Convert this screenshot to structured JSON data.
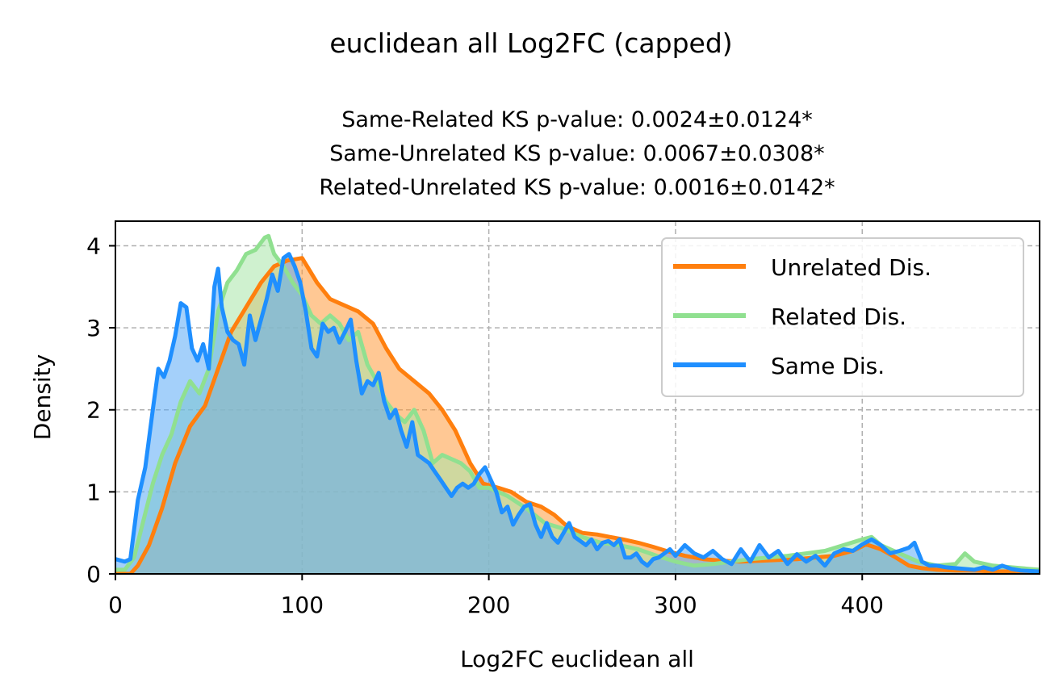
{
  "chart_data": {
    "type": "area",
    "suptitle": "euclidean all Log2FC (capped)",
    "title_lines": [
      "Same-Related KS p-value: 0.0024±0.0124*",
      "Same-Unrelated KS p-value: 0.0067±0.0308*",
      "Related-Unrelated KS p-value: 0.0016±0.0142*"
    ],
    "xlabel": "Log2FC euclidean all",
    "ylabel": "Density",
    "xlim": [
      0,
      495
    ],
    "ylim": [
      0,
      4.3
    ],
    "xticks": [
      0,
      100,
      200,
      300,
      400
    ],
    "yticks": [
      0,
      1,
      2,
      3,
      4
    ],
    "grid": true,
    "legend_position": "upper right",
    "series": [
      {
        "name": "Unrelated Dis.",
        "color": "#ff7f0e",
        "fill": "#ff9a3c",
        "x": [
          0,
          8,
          12,
          18,
          25,
          32,
          40,
          48,
          55,
          62,
          70,
          78,
          85,
          92,
          100,
          108,
          115,
          122,
          130,
          138,
          145,
          152,
          160,
          168,
          175,
          182,
          190,
          197,
          205,
          212,
          220,
          228,
          235,
          242,
          250,
          258,
          265,
          272,
          280,
          288,
          295,
          305,
          315,
          325,
          335,
          345,
          355,
          365,
          375,
          385,
          395,
          402,
          410,
          418,
          425,
          432,
          440,
          450,
          460,
          470,
          480,
          495
        ],
        "y": [
          0.0,
          0.0,
          0.1,
          0.35,
          0.8,
          1.35,
          1.8,
          2.05,
          2.5,
          2.95,
          3.25,
          3.55,
          3.75,
          3.82,
          3.85,
          3.55,
          3.35,
          3.28,
          3.2,
          3.05,
          2.75,
          2.5,
          2.35,
          2.2,
          2.0,
          1.75,
          1.35,
          1.1,
          1.05,
          1.0,
          0.88,
          0.82,
          0.72,
          0.58,
          0.5,
          0.48,
          0.45,
          0.42,
          0.38,
          0.33,
          0.28,
          0.22,
          0.18,
          0.16,
          0.15,
          0.16,
          0.17,
          0.18,
          0.2,
          0.22,
          0.28,
          0.36,
          0.3,
          0.2,
          0.1,
          0.07,
          0.05,
          0.04,
          0.04,
          0.03,
          0.03,
          0.02
        ]
      },
      {
        "name": "Related Dis.",
        "color": "#90e090",
        "fill": "#a8e6a8",
        "x": [
          0,
          5,
          10,
          15,
          20,
          25,
          30,
          35,
          40,
          45,
          50,
          55,
          60,
          65,
          70,
          75,
          80,
          82,
          85,
          90,
          95,
          100,
          105,
          110,
          115,
          120,
          125,
          130,
          135,
          140,
          145,
          150,
          155,
          160,
          165,
          170,
          175,
          180,
          185,
          190,
          195,
          200,
          210,
          220,
          230,
          240,
          250,
          260,
          270,
          280,
          290,
          300,
          310,
          320,
          330,
          340,
          350,
          360,
          370,
          380,
          390,
          400,
          405,
          410,
          420,
          430,
          440,
          450,
          455,
          460,
          470,
          480,
          495
        ],
        "y": [
          0.05,
          0.05,
          0.2,
          0.65,
          1.1,
          1.45,
          1.7,
          2.1,
          2.35,
          2.2,
          2.5,
          3.2,
          3.55,
          3.7,
          3.9,
          3.95,
          4.1,
          4.12,
          3.9,
          3.75,
          3.55,
          3.4,
          3.15,
          3.05,
          3.15,
          3.05,
          2.85,
          2.95,
          2.55,
          2.35,
          2.1,
          1.95,
          1.85,
          2.0,
          1.75,
          1.35,
          1.45,
          1.4,
          1.35,
          1.25,
          1.05,
          1.05,
          0.95,
          0.8,
          0.62,
          0.55,
          0.45,
          0.38,
          0.35,
          0.3,
          0.22,
          0.15,
          0.1,
          0.12,
          0.15,
          0.18,
          0.2,
          0.22,
          0.25,
          0.28,
          0.35,
          0.42,
          0.45,
          0.35,
          0.25,
          0.15,
          0.1,
          0.12,
          0.25,
          0.15,
          0.1,
          0.08,
          0.05
        ]
      },
      {
        "name": "Same Dis.",
        "color": "#1f8fff",
        "fill": "#5aaaf5",
        "x": [
          0,
          5,
          8,
          12,
          16,
          20,
          23,
          26,
          29,
          32,
          35,
          38,
          41,
          44,
          47,
          50,
          53,
          55,
          57,
          60,
          63,
          66,
          69,
          72,
          75,
          78,
          81,
          84,
          87,
          90,
          93,
          96,
          99,
          102,
          105,
          108,
          111,
          114,
          117,
          120,
          123,
          126,
          129,
          132,
          135,
          138,
          141,
          144,
          147,
          150,
          153,
          156,
          159,
          162,
          165,
          168,
          171,
          174,
          177,
          180,
          183,
          186,
          189,
          192,
          195,
          198,
          201,
          204,
          207,
          210,
          213,
          216,
          219,
          222,
          225,
          228,
          231,
          234,
          237,
          240,
          243,
          246,
          249,
          252,
          255,
          258,
          261,
          264,
          267,
          270,
          273,
          276,
          279,
          282,
          285,
          288,
          291,
          294,
          297,
          300,
          305,
          310,
          315,
          320,
          325,
          330,
          335,
          340,
          345,
          350,
          355,
          360,
          365,
          370,
          375,
          380,
          385,
          390,
          395,
          400,
          405,
          410,
          415,
          420,
          425,
          428,
          432,
          436,
          440,
          445,
          450,
          455,
          460,
          465,
          470,
          475,
          480,
          485,
          495
        ],
        "y": [
          0.18,
          0.15,
          0.18,
          0.9,
          1.3,
          2.0,
          2.5,
          2.4,
          2.6,
          2.9,
          3.3,
          3.25,
          2.75,
          2.6,
          2.8,
          2.5,
          3.5,
          3.72,
          3.25,
          2.95,
          2.85,
          2.8,
          2.55,
          3.15,
          2.85,
          3.1,
          3.35,
          3.65,
          3.45,
          3.85,
          3.9,
          3.75,
          3.55,
          3.2,
          2.75,
          2.65,
          3.05,
          2.95,
          3.0,
          2.82,
          2.95,
          3.1,
          2.6,
          2.2,
          2.35,
          2.3,
          2.45,
          2.1,
          1.9,
          2.0,
          1.75,
          1.55,
          1.85,
          1.45,
          1.4,
          1.35,
          1.25,
          1.15,
          1.05,
          0.95,
          1.05,
          1.1,
          1.05,
          1.1,
          1.22,
          1.3,
          1.15,
          1.0,
          0.75,
          0.82,
          0.6,
          0.72,
          0.82,
          0.85,
          0.6,
          0.45,
          0.62,
          0.45,
          0.38,
          0.5,
          0.62,
          0.45,
          0.4,
          0.35,
          0.42,
          0.3,
          0.38,
          0.4,
          0.35,
          0.42,
          0.2,
          0.2,
          0.25,
          0.15,
          0.1,
          0.18,
          0.2,
          0.25,
          0.3,
          0.22,
          0.35,
          0.25,
          0.2,
          0.28,
          0.18,
          0.12,
          0.3,
          0.15,
          0.35,
          0.2,
          0.28,
          0.12,
          0.24,
          0.15,
          0.22,
          0.1,
          0.25,
          0.3,
          0.28,
          0.36,
          0.42,
          0.35,
          0.25,
          0.28,
          0.32,
          0.38,
          0.15,
          0.1,
          0.1,
          0.08,
          0.07,
          0.06,
          0.05,
          0.08,
          0.05,
          0.1,
          0.06,
          0.04,
          0.03
        ]
      }
    ]
  }
}
